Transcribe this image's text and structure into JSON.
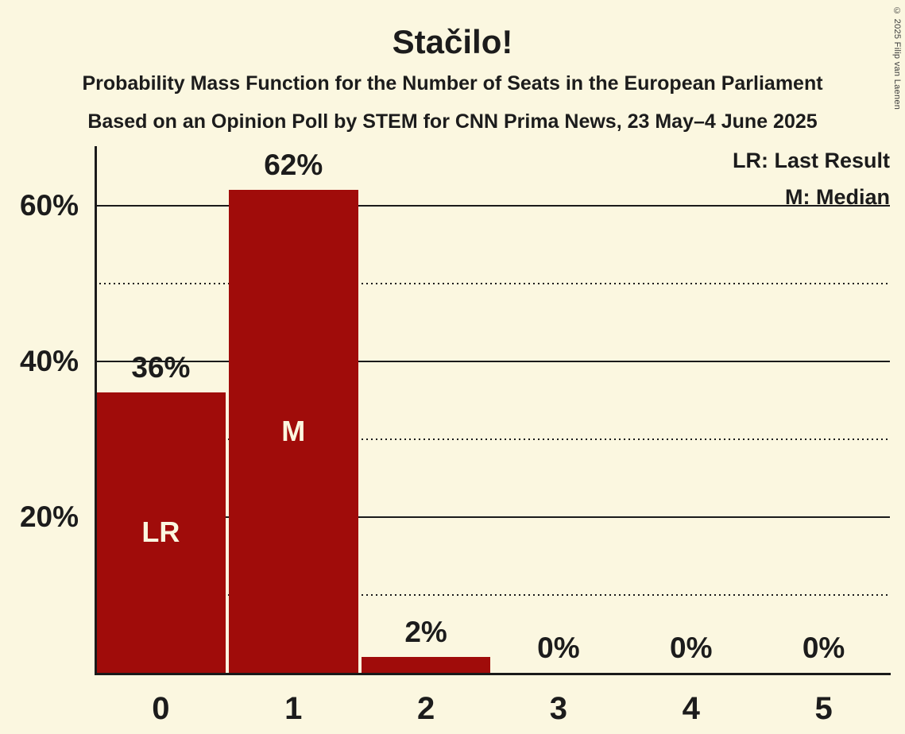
{
  "title": "Stačilo!",
  "subtitles": [
    "Probability Mass Function for the Number of Seats in the European Parliament",
    "Based on an Opinion Poll by STEM for CNN Prima News, 23 May–4 June 2025"
  ],
  "copyright": "© 2025 Filip van Laenen",
  "legend": {
    "last_result": "LR: Last Result",
    "median": "M: Median"
  },
  "colors": {
    "background": "#FBF7E0",
    "bar": "#A00C0A",
    "text": "#1C1C1C",
    "gridline": "#1A1A1A",
    "in_bar_label": "#FBF7E0"
  },
  "chart_data": {
    "type": "bar",
    "title": "Stačilo!",
    "categories": [
      "0",
      "1",
      "2",
      "3",
      "4",
      "5"
    ],
    "values": [
      36,
      62,
      2,
      0,
      0,
      0
    ],
    "value_labels": [
      "36%",
      "62%",
      "2%",
      "0%",
      "0%",
      "0%"
    ],
    "markers": [
      {
        "index": 0,
        "label": "LR",
        "meaning": "Last Result"
      },
      {
        "index": 1,
        "label": "M",
        "meaning": "Median"
      }
    ],
    "y_ticks": [
      {
        "label": "20%",
        "value": 20
      },
      {
        "label": "40%",
        "value": 40
      },
      {
        "label": "60%",
        "value": 60
      }
    ],
    "gridlines": {
      "solid": [
        20,
        40,
        60
      ],
      "dotted": [
        10,
        30,
        50
      ]
    },
    "ylim": [
      0,
      67.6
    ],
    "grid": true,
    "legend_position": "top-right"
  }
}
